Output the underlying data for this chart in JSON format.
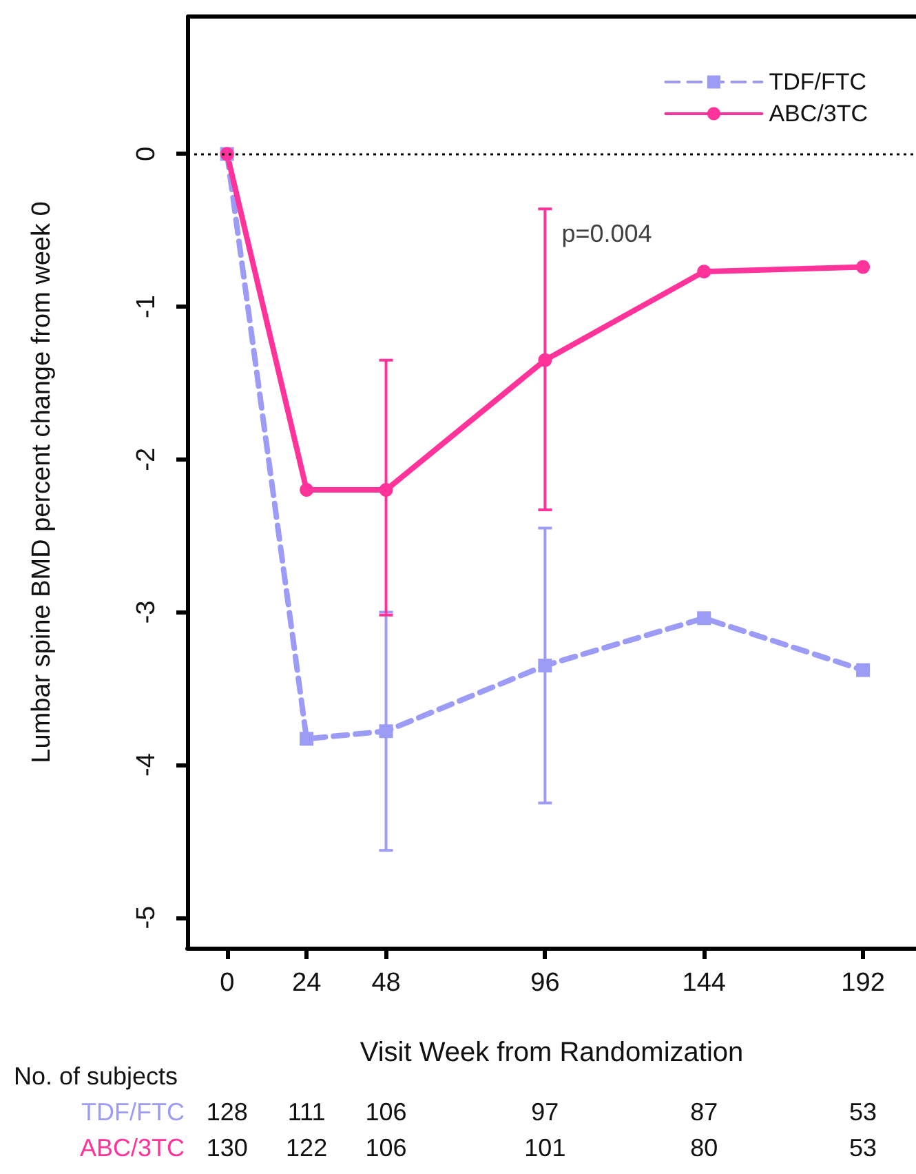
{
  "chart_data": {
    "type": "line",
    "xlabel": "Visit Week from Randomization",
    "ylabel": "Lumbar spine BMD percent change from week 0",
    "x": [
      0,
      24,
      48,
      96,
      144,
      192
    ],
    "series": [
      {
        "name": "TDF/FTC",
        "color": "#9c9cf7",
        "marker": "square",
        "line_style": "dashed",
        "values": [
          0,
          -3.83,
          -3.78,
          -3.35,
          -3.04,
          -3.38
        ],
        "errors": [
          null,
          null,
          [
            -4.56,
            -3.0
          ],
          [
            -4.25,
            -2.45
          ],
          null,
          null
        ]
      },
      {
        "name": "ABC/3TC",
        "color": "#ff3399",
        "marker": "circle",
        "line_style": "solid",
        "values": [
          0,
          -2.2,
          -2.2,
          -1.35,
          -0.77,
          -0.74
        ],
        "errors": [
          null,
          null,
          [
            -3.02,
            -1.35
          ],
          [
            -2.33,
            -0.36
          ],
          null,
          null
        ]
      }
    ],
    "xlim": [
      -12,
      208
    ],
    "xticks": [
      0,
      24,
      48,
      96,
      144,
      192
    ],
    "ylim": [
      -5.2,
      0.9
    ],
    "yticks": [
      0,
      -1,
      -2,
      -3,
      -4,
      -5
    ],
    "ref_lines": [
      {
        "axis": "y",
        "value": 0,
        "color": "#000000",
        "line_style": "dotted"
      }
    ],
    "legend": "top right",
    "grid": false,
    "annotations": [
      {
        "text": "p=0.004",
        "x": 96,
        "y": -0.36
      },
      "No. of subjects",
      "TDF/FTC 128 111 106 97 87 53",
      "ABC/3TC 130 122 106 101 80 53"
    ]
  }
}
